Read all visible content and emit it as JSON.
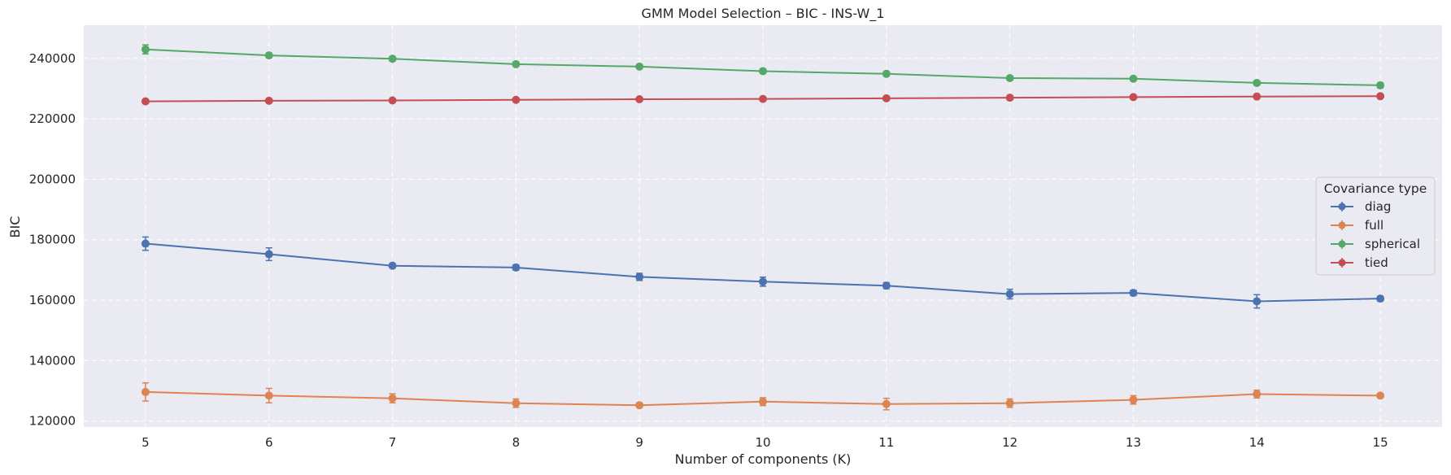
{
  "chart_data": {
    "type": "line",
    "title": "GMM Model Selection – BIC - INS-W_1",
    "xlabel": "Number of components (K)",
    "ylabel": "BIC",
    "x": [
      5,
      6,
      7,
      8,
      9,
      10,
      11,
      12,
      13,
      14,
      15
    ],
    "xlim": [
      4.5,
      15.5
    ],
    "ylim": [
      118000,
      251000
    ],
    "yticks": [
      120000,
      140000,
      160000,
      180000,
      200000,
      220000,
      240000
    ],
    "grid": true,
    "legend": {
      "title": "Covariance type",
      "placement": "center-right"
    },
    "series": [
      {
        "name": "diag",
        "color": "#4c72b0",
        "values": [
          178700,
          175200,
          171400,
          170800,
          167700,
          166100,
          164800,
          162000,
          162400,
          159600,
          160500
        ],
        "errors": [
          2200,
          2100,
          800,
          900,
          1200,
          1500,
          1000,
          1600,
          900,
          2200,
          800
        ]
      },
      {
        "name": "full",
        "color": "#dd8452",
        "values": [
          129600,
          128400,
          127500,
          125900,
          125200,
          126400,
          125600,
          125900,
          127000,
          128900,
          128400
        ],
        "errors": [
          3000,
          2400,
          1500,
          1400,
          800,
          1300,
          1900,
          1400,
          1400,
          1300,
          700
        ]
      },
      {
        "name": "spherical",
        "color": "#55a868",
        "values": [
          243000,
          241000,
          239900,
          238100,
          237300,
          235800,
          234900,
          233500,
          233300,
          231900,
          231100
        ],
        "errors": [
          1500,
          800,
          800,
          600,
          600,
          700,
          700,
          600,
          600,
          700,
          800
        ]
      },
      {
        "name": "tied",
        "color": "#c44e52",
        "values": [
          225800,
          226000,
          226100,
          226300,
          226500,
          226600,
          226800,
          227000,
          227200,
          227400,
          227500
        ],
        "errors": [
          500,
          500,
          500,
          500,
          500,
          500,
          500,
          500,
          500,
          500,
          500
        ]
      }
    ]
  }
}
